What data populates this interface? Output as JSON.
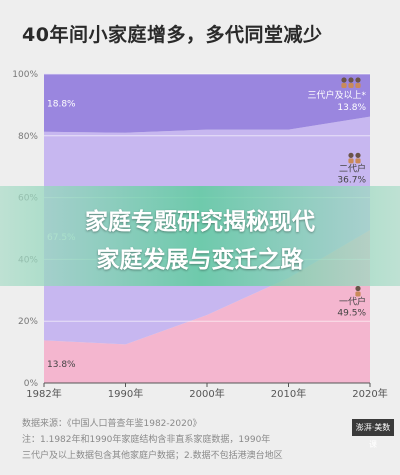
{
  "title": "40年间小家庭增多，多代同堂减少",
  "chart_data": {
    "type": "area",
    "stacked": true,
    "x": [
      "1982年",
      "1990年",
      "2000年",
      "2010年",
      "2020年"
    ],
    "ylim": [
      0,
      100
    ],
    "yticks": [
      "0%",
      "20%",
      "40%",
      "60%",
      "80%",
      "100%"
    ],
    "series": [
      {
        "name": "一代户",
        "values": [
          13.8,
          12.5,
          22,
          34,
          49.5
        ],
        "color": "#f4b6cf"
      },
      {
        "name": "二代户",
        "values": [
          67.5,
          68.5,
          60,
          48,
          36.7
        ],
        "color": "#c7b7f0"
      },
      {
        "name": "三代户及以上*",
        "values": [
          18.8,
          19,
          18,
          18,
          13.8
        ],
        "color": "#9a86df"
      }
    ],
    "labels_left": {
      "三代户及以上*": "18.8%",
      "二代户": "67.5%",
      "一代户": "13.8%"
    },
    "labels_right": {
      "三代户及以上*": "13.8%",
      "二代户": "36.7%",
      "一代户": "49.5%"
    }
  },
  "icons": {
    "三代户及以上*": "three-people-icon",
    "二代户": "two-people-icon",
    "一代户": "person-icon"
  },
  "notes": [
    "数据来源：《中国人口普查年鉴1982-2020》",
    "注：1.1982年和1990年家庭结构含非直系家庭数据，1990年",
    "三代户及以上数据包含其他家庭户数据；2.数据不包括港澳台地区"
  ],
  "brand": "澎湃·美数课",
  "banner": {
    "line1": "家庭专题研究揭秘现代",
    "line2": "家庭发展与变迁之路"
  }
}
